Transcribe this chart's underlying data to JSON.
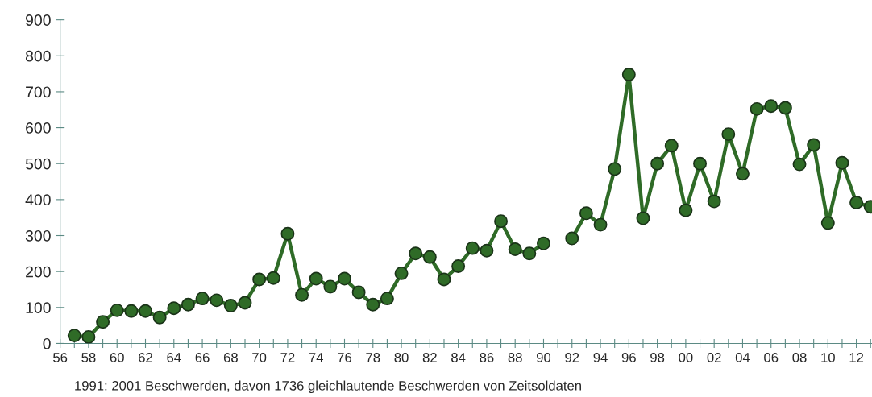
{
  "chart_data": {
    "type": "line",
    "x": [
      1957,
      1958,
      1959,
      1960,
      1961,
      1962,
      1963,
      1964,
      1965,
      1966,
      1967,
      1968,
      1969,
      1970,
      1971,
      1972,
      1973,
      1974,
      1975,
      1976,
      1977,
      1978,
      1979,
      1980,
      1981,
      1982,
      1983,
      1984,
      1985,
      1986,
      1987,
      1988,
      1989,
      1990,
      1991,
      1992,
      1993,
      1994,
      1995,
      1996,
      1997,
      1998,
      1999,
      2000,
      2001,
      2002,
      2003,
      2004,
      2005,
      2006,
      2007,
      2008,
      2009,
      2010,
      2011,
      2012,
      2013
    ],
    "series": [
      {
        "color": "#2f6b27",
        "values": [
          22,
          18,
          60,
          92,
          90,
          90,
          72,
          98,
          108,
          125,
          120,
          105,
          113,
          178,
          182,
          305,
          135,
          180,
          158,
          180,
          142,
          108,
          125,
          195,
          250,
          240,
          178,
          215,
          265,
          258,
          340,
          262,
          250,
          278,
          null,
          292,
          362,
          330,
          485,
          748,
          348,
          500,
          550,
          370,
          500,
          395,
          582,
          472,
          652,
          660,
          655,
          498,
          552,
          335,
          502,
          392,
          380
        ]
      }
    ],
    "xlim": [
      1956,
      2013.1
    ],
    "ylim": [
      0,
      900
    ],
    "xticks": [
      {
        "value": 1956,
        "label": "56"
      },
      {
        "value": 1957,
        "label": null
      },
      {
        "value": 1958,
        "label": "58"
      },
      {
        "value": 1959,
        "label": null
      },
      {
        "value": 1960,
        "label": "60"
      },
      {
        "value": 1961,
        "label": null
      },
      {
        "value": 1962,
        "label": "62"
      },
      {
        "value": 1963,
        "label": null
      },
      {
        "value": 1964,
        "label": "64"
      },
      {
        "value": 1965,
        "label": null
      },
      {
        "value": 1966,
        "label": "66"
      },
      {
        "value": 1967,
        "label": null
      },
      {
        "value": 1968,
        "label": "68"
      },
      {
        "value": 1969,
        "label": null
      },
      {
        "value": 1970,
        "label": "70"
      },
      {
        "value": 1971,
        "label": null
      },
      {
        "value": 1972,
        "label": "72"
      },
      {
        "value": 1973,
        "label": null
      },
      {
        "value": 1974,
        "label": "74"
      },
      {
        "value": 1975,
        "label": null
      },
      {
        "value": 1976,
        "label": "76"
      },
      {
        "value": 1977,
        "label": null
      },
      {
        "value": 1978,
        "label": "78"
      },
      {
        "value": 1979,
        "label": null
      },
      {
        "value": 1980,
        "label": "80"
      },
      {
        "value": 1981,
        "label": null
      },
      {
        "value": 1982,
        "label": "82"
      },
      {
        "value": 1983,
        "label": null
      },
      {
        "value": 1984,
        "label": "84"
      },
      {
        "value": 1985,
        "label": null
      },
      {
        "value": 1986,
        "label": "86"
      },
      {
        "value": 1987,
        "label": null
      },
      {
        "value": 1988,
        "label": "88"
      },
      {
        "value": 1989,
        "label": null
      },
      {
        "value": 1990,
        "label": "90"
      },
      {
        "value": 1991,
        "label": null
      },
      {
        "value": 1992,
        "label": "92"
      },
      {
        "value": 1993,
        "label": null
      },
      {
        "value": 1994,
        "label": "94"
      },
      {
        "value": 1995,
        "label": null
      },
      {
        "value": 1996,
        "label": "96"
      },
      {
        "value": 1997,
        "label": null
      },
      {
        "value": 1998,
        "label": "98"
      },
      {
        "value": 1999,
        "label": null
      },
      {
        "value": 2000,
        "label": "00"
      },
      {
        "value": 2001,
        "label": null
      },
      {
        "value": 2002,
        "label": "02"
      },
      {
        "value": 2003,
        "label": null
      },
      {
        "value": 2004,
        "label": "04"
      },
      {
        "value": 2005,
        "label": null
      },
      {
        "value": 2006,
        "label": "06"
      },
      {
        "value": 2007,
        "label": null
      },
      {
        "value": 2008,
        "label": "08"
      },
      {
        "value": 2009,
        "label": null
      },
      {
        "value": 2010,
        "label": "10"
      },
      {
        "value": 2011,
        "label": null
      },
      {
        "value": 2012,
        "label": "12"
      },
      {
        "value": 2013,
        "label": null
      }
    ],
    "yticks": [
      0,
      100,
      200,
      300,
      400,
      500,
      600,
      700,
      800,
      900
    ],
    "marker": "circle",
    "line_style": "solid",
    "grid": false,
    "legend": false,
    "annotations": [
      "1991: 2001 Beschwerden, davon 1736 gleichlautende Beschwerden von Zeitsoldaten"
    ]
  }
}
